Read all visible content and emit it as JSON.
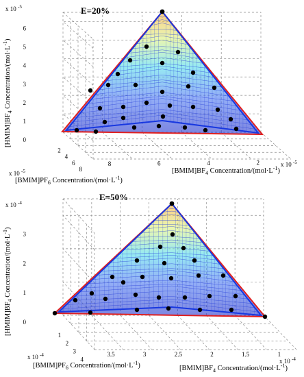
{
  "chart_data": [
    {
      "type": "surface3d",
      "title": "E=20%",
      "x_label_main": "[BMIM]PF",
      "x_label_sub": "6",
      "x_label_tail": " Concentration/(mol·L",
      "x_exponent_label": "x 10",
      "x_exponent": "-5",
      "y_label_main": "[BMIM]BF",
      "y_label_sub": "4",
      "y_label_tail": " Concentration/(mol·L",
      "y_exponent_label": "x 10",
      "y_exponent": "-5",
      "z_label_main": "[HMIM]BF",
      "z_label_sub": "4",
      "z_label_tail": " Concentration/(mol·L",
      "z_exponent_label": "x 10",
      "z_exponent": "-5",
      "label_close": ")",
      "unit_superscript": "-1",
      "xticks": [
        "2",
        "4",
        "6",
        "8"
      ],
      "yticks": [
        "8",
        "6",
        "4",
        "2",
        "0"
      ],
      "zticks": [
        "0",
        "1",
        "2",
        "3",
        "4",
        "5",
        "6"
      ],
      "xlim": [
        0,
        8
      ],
      "ylim": [
        0,
        8
      ],
      "zlim": [
        0,
        6.5
      ],
      "triangle_vertices": [
        [
          8,
          0,
          0
        ],
        [
          0,
          8,
          0
        ],
        [
          0,
          0,
          6.5
        ]
      ],
      "grid": true
    },
    {
      "type": "surface3d",
      "title": "E=50%",
      "x_label_main": "[BMIM]PF",
      "x_label_sub": "6",
      "x_label_tail": " Concentration/(mol·L",
      "x_exponent_label": "x 10",
      "x_exponent": "-4",
      "y_label_main": "[BMIM]BF",
      "y_label_sub": "4",
      "y_label_tail": " Concentration/(mol·L",
      "y_exponent_label": "x 10",
      "y_exponent": "-4",
      "z_label_main": "[HMIM]BF",
      "z_label_sub": "4",
      "z_label_tail": " Concentration/(mol·L",
      "z_exponent_label": "x 10",
      "z_exponent": "-4",
      "label_close": ")",
      "unit_superscript": "-1",
      "xticks": [
        "1",
        "2",
        "3",
        "4"
      ],
      "yticks": [
        "3.5",
        "3",
        "2.5",
        "2",
        "1.5",
        "1",
        "0.5"
      ],
      "zticks": [
        "0",
        "1",
        "2",
        "3"
      ],
      "xlim": [
        0,
        4
      ],
      "ylim": [
        0,
        3.5
      ],
      "zlim": [
        0,
        3.3
      ],
      "triangle_vertices": [
        [
          4,
          0,
          0
        ],
        [
          0,
          3.5,
          0
        ],
        [
          0,
          0,
          3.3
        ]
      ],
      "grid": true
    }
  ]
}
